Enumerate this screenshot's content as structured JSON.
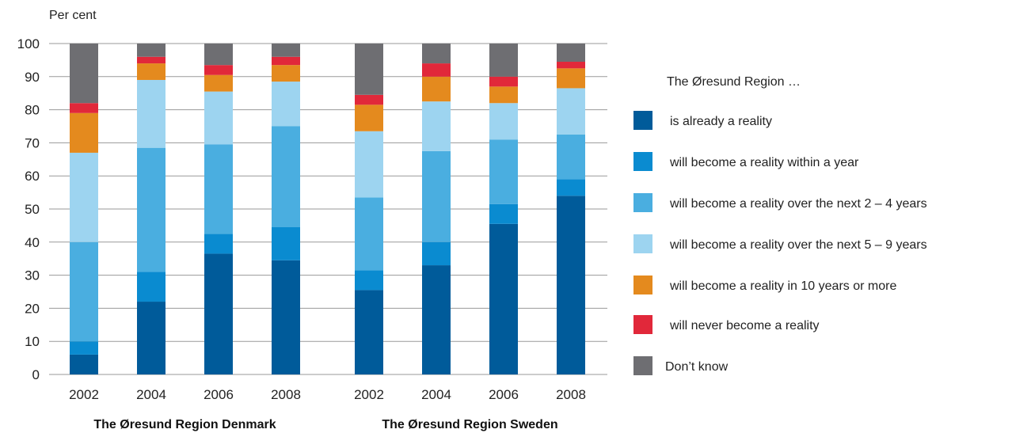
{
  "chart_data": {
    "type": "bar",
    "stacked": true,
    "ylabel": "Per cent",
    "ylim": [
      0,
      100
    ],
    "yticks": [
      0,
      10,
      20,
      30,
      40,
      50,
      60,
      70,
      80,
      90,
      100
    ],
    "grid": true,
    "legend_position": "right",
    "legend_title": "The Øresund Region …",
    "groups": [
      {
        "title": "The Øresund Region Denmark",
        "categories": [
          "2002",
          "2004",
          "2006",
          "2008"
        ]
      },
      {
        "title": "The Øresund Region Sweden",
        "categories": [
          "2002",
          "2004",
          "2006",
          "2008"
        ]
      }
    ],
    "series": [
      {
        "name": "is already a reality",
        "color": "#005b9a",
        "values": [
          6,
          22,
          36.5,
          34.5,
          25.5,
          33,
          45.5,
          54
        ]
      },
      {
        "name": "will become a reality within a year",
        "color": "#0a8bd0",
        "values": [
          4,
          9,
          6,
          10,
          6,
          7,
          6,
          5
        ]
      },
      {
        "name": "will become a reality over the next 2 – 4 years",
        "color": "#4aaee0",
        "values": [
          30,
          37.5,
          27,
          30.5,
          22,
          27.5,
          19.5,
          13.5
        ]
      },
      {
        "name": "will become a reality over the next 5 – 9 years",
        "color": "#9dd4f0",
        "values": [
          27,
          20.5,
          16,
          13.5,
          20,
          15,
          11,
          14
        ]
      },
      {
        "name": "will become a reality in 10 years or more",
        "color": "#e48a1e",
        "values": [
          12,
          5,
          5,
          5,
          8,
          7.5,
          5,
          6
        ]
      },
      {
        "name": "will never become a reality",
        "color": "#e1283a",
        "values": [
          3,
          2,
          3,
          2.5,
          3,
          4,
          3,
          2
        ]
      },
      {
        "name": "Don’t know",
        "color": "#6e6e72",
        "values": [
          18,
          4,
          6.5,
          4,
          15.5,
          6,
          10,
          5.5
        ]
      }
    ]
  }
}
